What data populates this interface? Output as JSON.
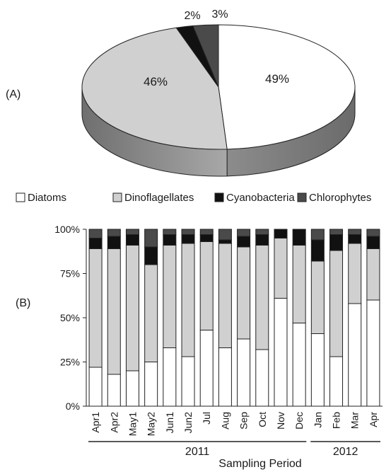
{
  "colors": {
    "diatoms": "#ffffff",
    "dinoflagellates": "#d0d0d0",
    "cyanobacteria": "#111111",
    "chlorophytes": "#4a4a4a"
  },
  "chart_data": [
    {
      "type": "pie",
      "panel_label": "(A)",
      "style": "3d",
      "slices": [
        {
          "name": "Diatoms",
          "value": 49,
          "label": "49%",
          "color": "#ffffff"
        },
        {
          "name": "Dinoflagellates",
          "value": 46,
          "label": "46%",
          "color": "#d0d0d0"
        },
        {
          "name": "Cyanobacteria",
          "value": 2,
          "label": "2%",
          "color": "#111111"
        },
        {
          "name": "Chlorophytes",
          "value": 3,
          "label": "3%",
          "color": "#4a4a4a"
        }
      ]
    },
    {
      "type": "bar",
      "stacked": true,
      "percent": true,
      "panel_label": "(B)",
      "xlabel": "Sampling Period",
      "categories": [
        "Apr1",
        "Apr2",
        "May1",
        "May2",
        "Jun1",
        "Jun2",
        "Jul",
        "Aug",
        "Sep",
        "Oct",
        "Nov",
        "Dec",
        "Jan",
        "Feb",
        "Mar",
        "Apr"
      ],
      "year_groups": [
        {
          "label": "2011",
          "start": 0,
          "end": 11
        },
        {
          "label": "2012",
          "start": 12,
          "end": 15
        }
      ],
      "ylim": [
        0,
        100
      ],
      "yticks": [
        {
          "value": 0,
          "label": "0%"
        },
        {
          "value": 25,
          "label": "25%"
        },
        {
          "value": 50,
          "label": "50%"
        },
        {
          "value": 75,
          "label": "75%"
        },
        {
          "value": 100,
          "label": "100%"
        }
      ],
      "legend_position": "top",
      "series": [
        {
          "name": "Diatoms",
          "color": "#ffffff",
          "values": [
            22,
            18,
            20,
            25,
            33,
            28,
            43,
            33,
            38,
            32,
            61,
            47,
            41,
            28,
            58,
            60
          ]
        },
        {
          "name": "Dinoflagellates",
          "color": "#d0d0d0",
          "values": [
            67,
            71,
            71,
            55,
            58,
            64,
            50,
            59,
            52,
            59,
            34,
            44,
            41,
            60,
            34,
            29
          ]
        },
        {
          "name": "Cyanobacteria",
          "color": "#111111",
          "values": [
            6,
            7,
            6,
            10,
            6,
            5,
            4,
            2,
            6,
            6,
            5,
            9,
            12,
            9,
            5,
            7
          ]
        },
        {
          "name": "Chlorophytes",
          "color": "#4a4a4a",
          "values": [
            5,
            4,
            3,
            10,
            3,
            3,
            3,
            6,
            4,
            3,
            0,
            0,
            6,
            3,
            3,
            4
          ]
        }
      ]
    }
  ]
}
